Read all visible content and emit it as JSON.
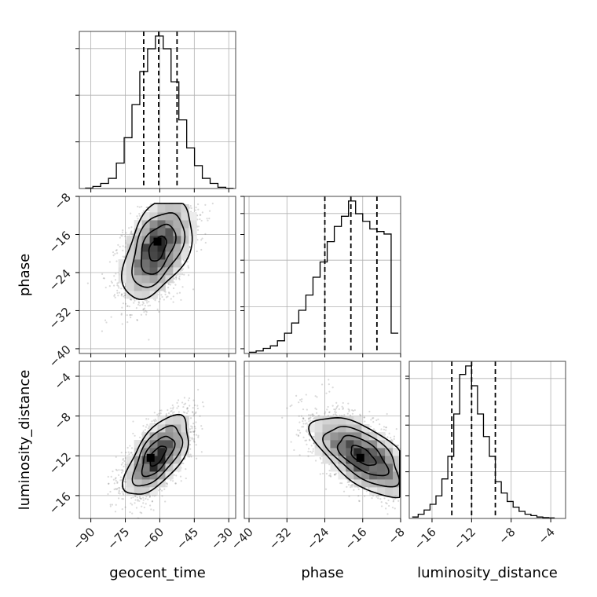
{
  "chart_data": {
    "type": "corner",
    "grid": true,
    "variables": [
      {
        "name": "geocent_time",
        "range": [
          -95,
          -27
        ],
        "ticks": [
          -90,
          -75,
          -60,
          -45,
          -30
        ],
        "quantiles": [
          -67,
          -60.5,
          -52.5
        ]
      },
      {
        "name": "phase",
        "range": [
          -41,
          -8
        ],
        "ticks": [
          -40,
          -32,
          -24,
          -16,
          -8
        ],
        "quantiles": [
          -24,
          -18.5,
          -13
        ]
      },
      {
        "name": "luminosity_distance",
        "range": [
          -18.3,
          -2.5
        ],
        "ticks": [
          -16,
          -12,
          -8,
          -4
        ],
        "quantiles": [
          -14,
          -12,
          -9.6
        ]
      }
    ],
    "histograms": [
      {
        "variable": "geocent_time",
        "bin_edges": [
          -92.5,
          -89.1,
          -85.7,
          -82.3,
          -78.9,
          -75.5,
          -72.1,
          -68.7,
          -65.3,
          -61.9,
          -58.5,
          -55.1,
          -51.7,
          -48.3,
          -44.9,
          -41.5,
          -38.1,
          -34.7,
          -31.3,
          -27.9
        ],
        "counts": [
          0.2,
          0.8,
          2,
          4,
          10,
          20,
          33,
          46,
          55,
          60,
          55,
          42,
          27,
          16,
          9,
          4,
          2,
          0.5,
          0.1
        ]
      },
      {
        "variable": "phase",
        "bin_edges": [
          -40,
          -38.5,
          -37,
          -35.5,
          -34,
          -32.5,
          -31,
          -29.5,
          -28,
          -26.5,
          -25,
          -23.5,
          -22,
          -20.5,
          -19,
          -17.5,
          -16,
          -14.5,
          -13,
          -11.5,
          -10,
          -8.5
        ],
        "counts": [
          0.5,
          1,
          2,
          3,
          5,
          8,
          12,
          17,
          23,
          30,
          36,
          44,
          50,
          54,
          60,
          55,
          52,
          49,
          48,
          47,
          8
        ]
      },
      {
        "variable": "luminosity_distance",
        "bin_edges": [
          -18,
          -17.4,
          -16.8,
          -16.2,
          -15.6,
          -15,
          -14.4,
          -13.8,
          -13.2,
          -12.6,
          -12,
          -11.4,
          -10.8,
          -10.2,
          -9.6,
          -9,
          -8.4,
          -7.8,
          -7.2,
          -6.6,
          -6,
          -5.4,
          -4.8,
          -4.2,
          -3.6
        ],
        "counts": [
          0.5,
          1.5,
          3,
          5,
          8,
          14,
          22,
          37,
          51,
          54,
          47,
          37,
          29,
          22,
          13,
          9,
          6,
          4,
          2.5,
          1.5,
          1,
          0.5,
          0.3,
          0.2
        ]
      }
    ],
    "pairs": [
      {
        "x": "geocent_time",
        "y": "phase",
        "mean": [
          -61,
          -19
        ],
        "sd": [
          7.5,
          5.2
        ],
        "rho": 0.45,
        "clip_y_max": -9.5,
        "peak": [
          -61,
          -17.5
        ]
      },
      {
        "x": "geocent_time",
        "y": "luminosity_distance",
        "mean": [
          -61,
          -12
        ],
        "sd": [
          7,
          2
        ],
        "rho": 0.62,
        "peak": [
          -64,
          -12.2
        ]
      },
      {
        "x": "phase",
        "y": "luminosity_distance",
        "mean": [
          -16,
          -12
        ],
        "sd": [
          5.2,
          2
        ],
        "rho": -0.62,
        "clip_x_max": -8.2,
        "peak": [
          -16.5,
          -12.2
        ]
      }
    ]
  }
}
